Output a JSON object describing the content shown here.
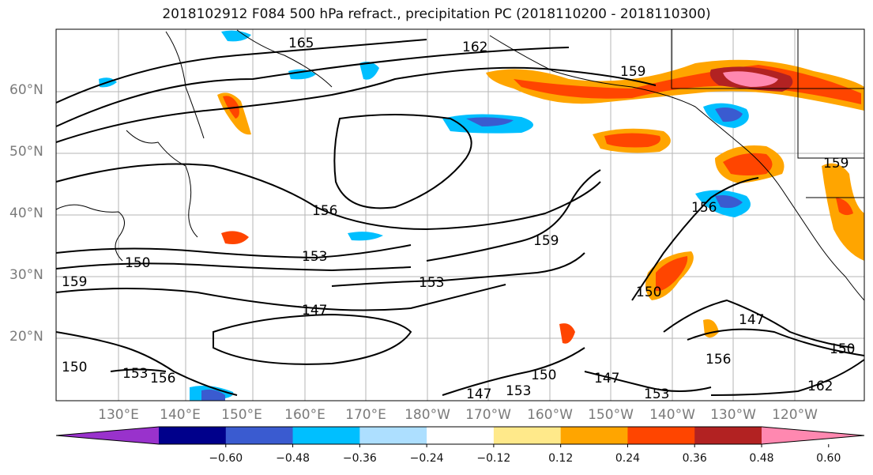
{
  "title": "2018102912 F084 500 hPa refract., precipitation PC (2018110200 - 2018110300)",
  "lat_labels": [
    "60°N",
    "50°N",
    "40°N",
    "30°N",
    "20°N"
  ],
  "lon_labels": [
    "130°E",
    "140°E",
    "150°E",
    "160°E",
    "170°E",
    "180°W",
    "170°W",
    "160°W",
    "150°W",
    "140°W",
    "130°W",
    "120°W"
  ],
  "contour_labels": [
    "165",
    "162",
    "159",
    "156",
    "153",
    "150",
    "159",
    "153",
    "147",
    "159",
    "156",
    "150",
    "147",
    "156",
    "150",
    "147",
    "153",
    "153",
    "156",
    "147",
    "150",
    "153",
    "150",
    "162",
    "159"
  ],
  "colorbar": {
    "colors": [
      "#9932CC",
      "#00008B",
      "#3A5BD0",
      "#00BFFF",
      "#ADDFFF",
      "#FFFFFF",
      "#FFE98A",
      "#FFA500",
      "#FF4500",
      "#B22222",
      "#FF88B0"
    ],
    "ticks": [
      "−0.60",
      "−0.48",
      "−0.36",
      "−0.24",
      "−0.12",
      "0.12",
      "0.24",
      "0.36",
      "0.48",
      "0.60"
    ]
  }
}
